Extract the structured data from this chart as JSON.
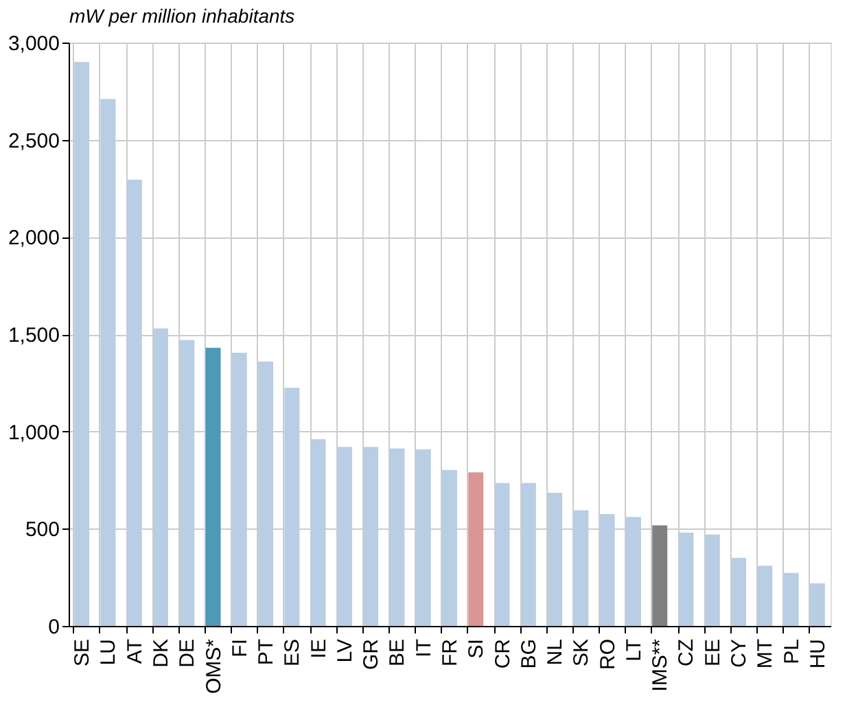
{
  "chart_data": {
    "type": "bar",
    "ylabel": "mW per million inhabitants",
    "categories": [
      "SE",
      "LU",
      "AT",
      "DK",
      "DE",
      "OMS*",
      "FI",
      "PT",
      "ES",
      "IE",
      "LV",
      "GR",
      "BE",
      "IT",
      "FR",
      "SI",
      "CR",
      "BG",
      "NL",
      "SK",
      "RO",
      "LT",
      "IMS**",
      "CZ",
      "EE",
      "CY",
      "MT",
      "PL",
      "HU"
    ],
    "values": [
      2900,
      2710,
      2295,
      1530,
      1470,
      1430,
      1405,
      1360,
      1225,
      960,
      920,
      920,
      912,
      908,
      802,
      790,
      735,
      735,
      685,
      595,
      575,
      560,
      517,
      480,
      470,
      350,
      310,
      273,
      219
    ],
    "colors": [
      "#b9cde5",
      "#b9cde5",
      "#b9cde5",
      "#b9cde5",
      "#b9cde5",
      "#4f98b8",
      "#b9cde5",
      "#b9cde5",
      "#b9cde5",
      "#b9cde5",
      "#b9cde5",
      "#b9cde5",
      "#b9cde5",
      "#b9cde5",
      "#b9cde5",
      "#d99694",
      "#b9cde5",
      "#b9cde5",
      "#b9cde5",
      "#b9cde5",
      "#b9cde5",
      "#b9cde5",
      "#808080",
      "#b9cde5",
      "#b9cde5",
      "#b9cde5",
      "#b9cde5",
      "#b9cde5",
      "#b9cde5"
    ],
    "ylim": [
      0,
      3000
    ],
    "yticks": [
      0,
      500,
      {
        "value": 1000,
        "label": "1,000"
      },
      {
        "value": 1500,
        "label": "1,500"
      },
      {
        "value": 2000,
        "label": "2,000"
      },
      {
        "value": 2500,
        "label": "2,500"
      },
      {
        "value": 3000,
        "label": "3,000"
      }
    ],
    "grid": true
  }
}
